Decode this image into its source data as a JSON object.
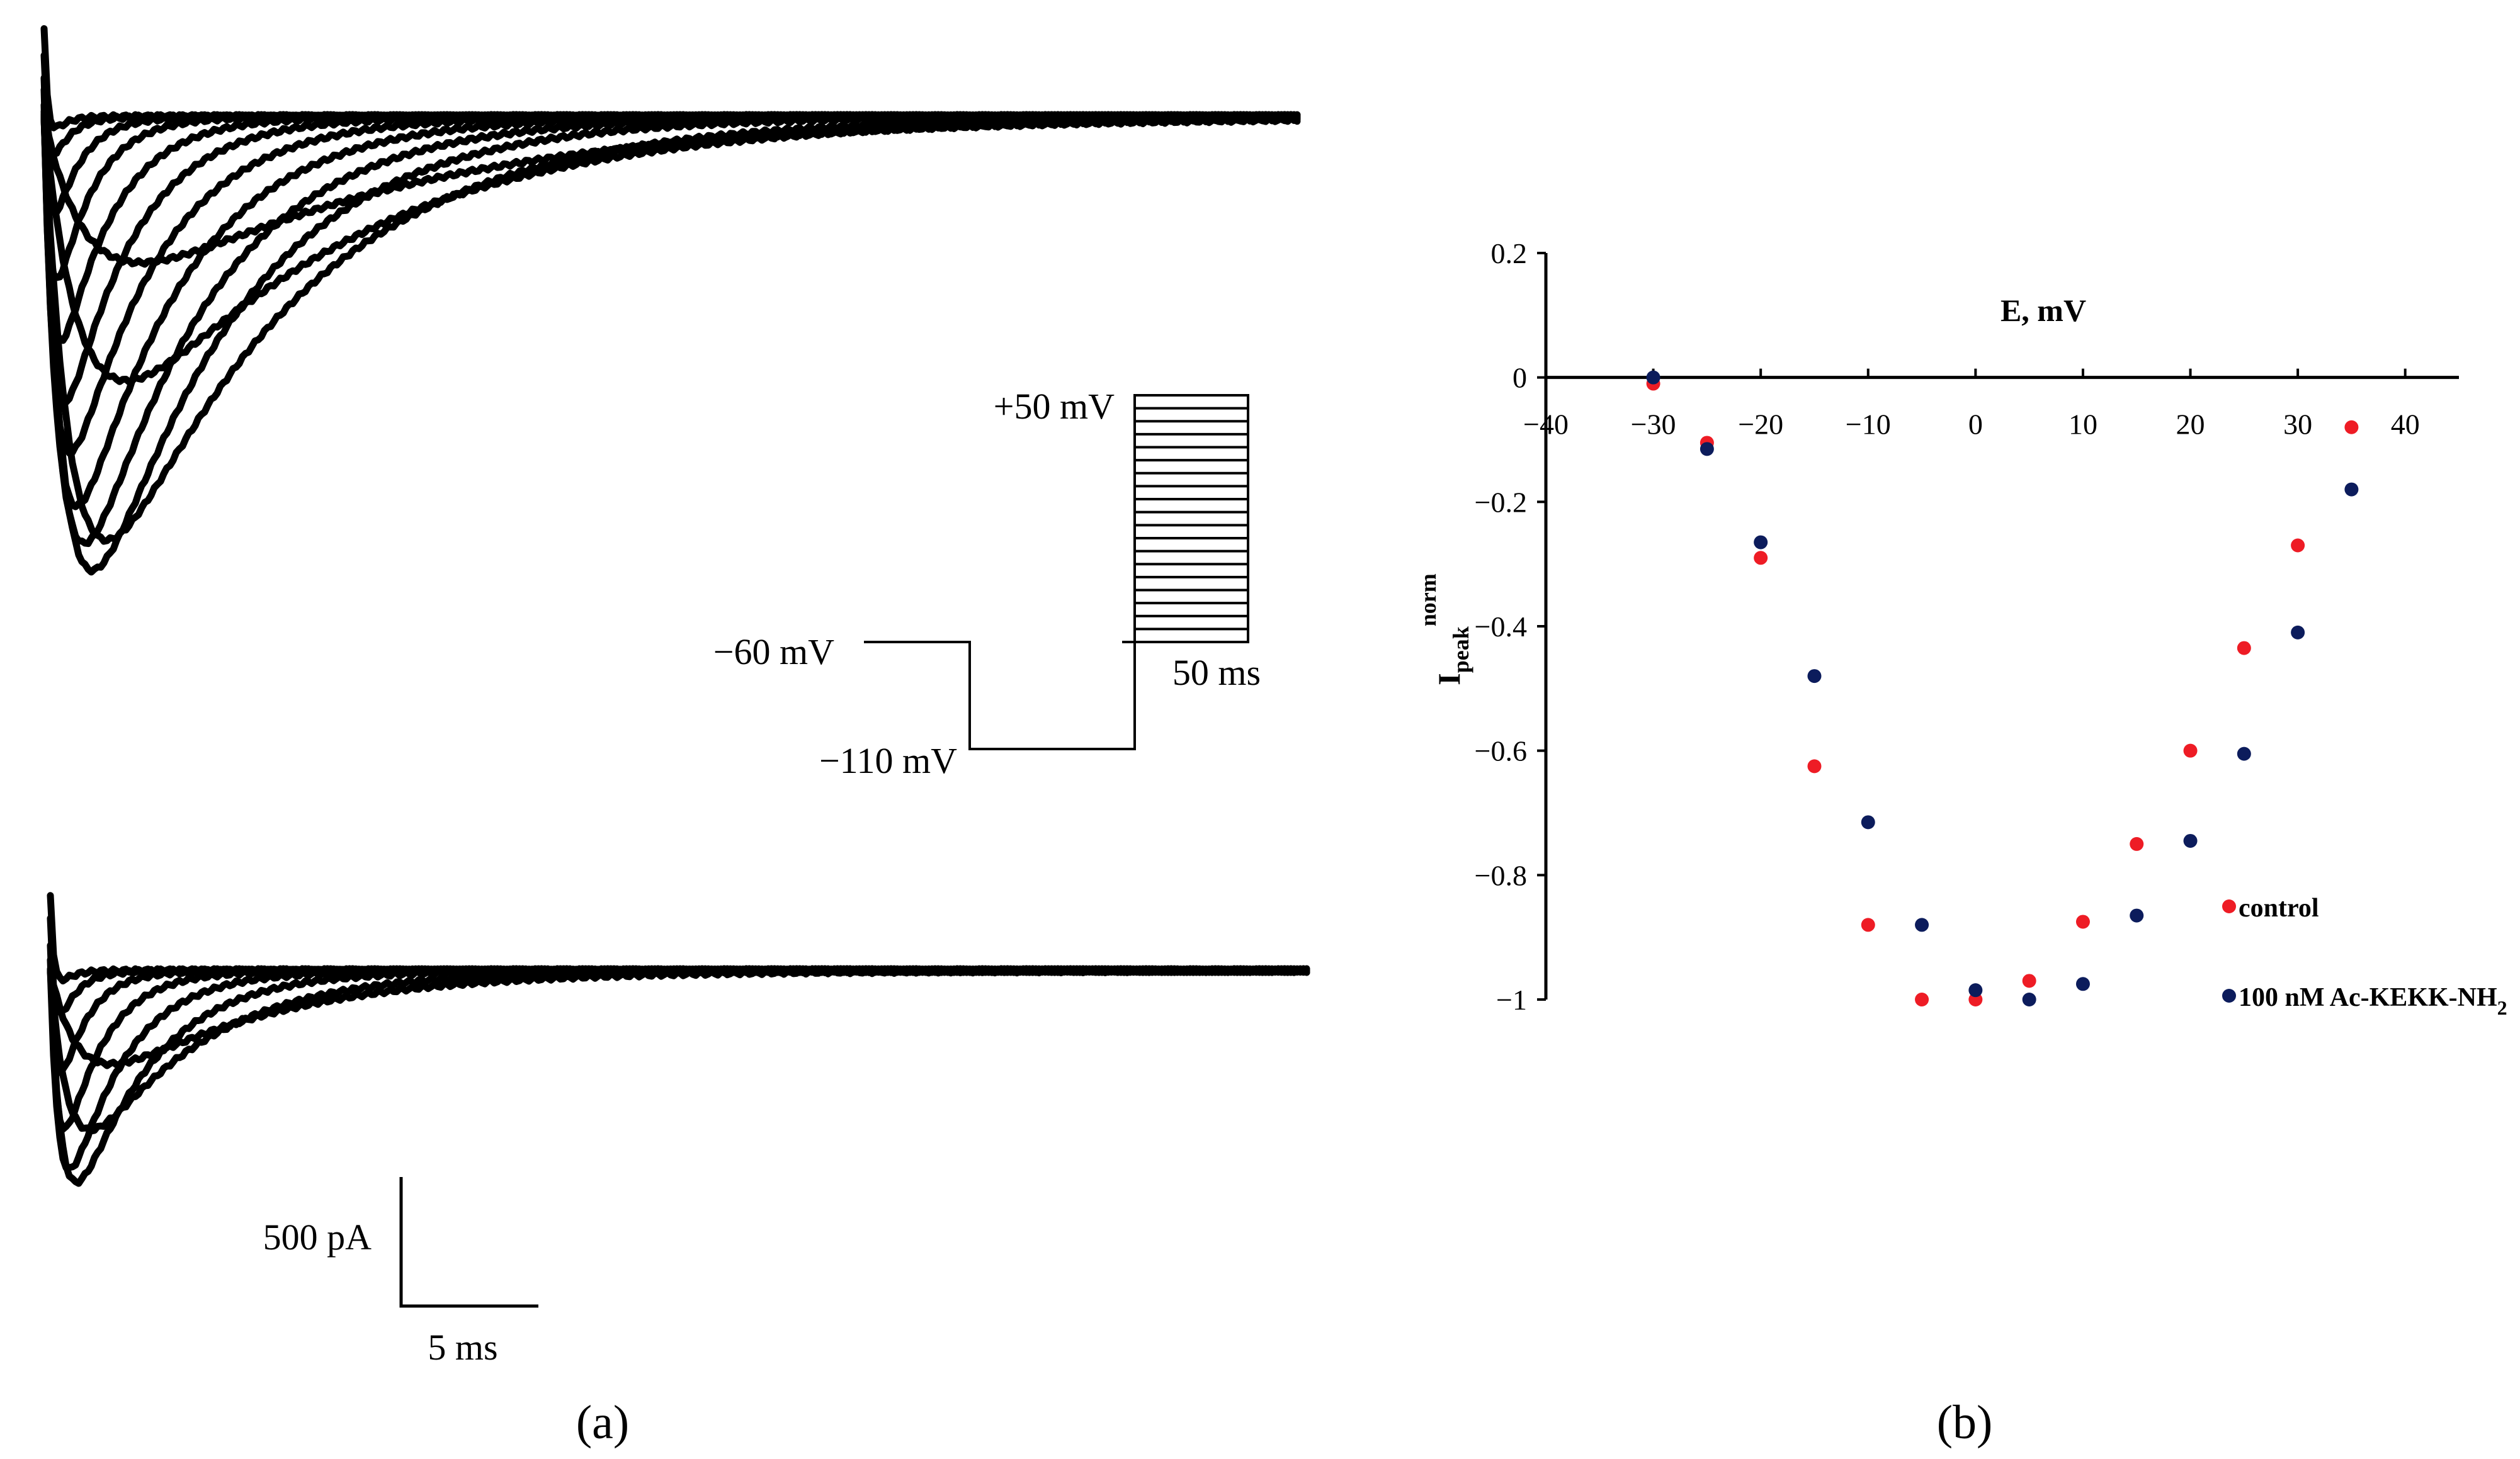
{
  "panel_a": {
    "label": "(a)",
    "protocol": {
      "v_step_max": "+50 mV",
      "v_hold": "−60 mV",
      "v_prepulse": "−110 mV",
      "duration": "50 ms"
    },
    "scale_bar": {
      "current": "500 pA",
      "time": "5 ms"
    }
  },
  "panel_b": {
    "label": "(b)"
  },
  "chart_data": {
    "type": "scatter",
    "xlabel": "E, mV",
    "ylabel_main": "I",
    "ylabel_sub": "peak",
    "ylabel_sup": "norm",
    "xlim": [
      -40,
      45
    ],
    "ylim": [
      -1,
      0.2
    ],
    "xticks": [
      -40,
      -30,
      -20,
      -10,
      0,
      10,
      20,
      30,
      40
    ],
    "xtick_labels": [
      "−40",
      "−30",
      "−20",
      "−10",
      "0",
      "10",
      "20",
      "30",
      "40"
    ],
    "yticks": [
      0.2,
      0,
      -0.2,
      -0.4,
      -0.6,
      -0.8,
      -1
    ],
    "ytick_labels": [
      "0.2",
      "0",
      "−0.2",
      "−0.4",
      "−0.6",
      "−0.8",
      "−1"
    ],
    "grid": false,
    "legend_placement": "bottom-right",
    "series": [
      {
        "name": "control",
        "color": "#ee1c25",
        "x": [
          -30,
          -25,
          -20,
          -15,
          -10,
          -5,
          0,
          5,
          10,
          15,
          20,
          25,
          30,
          35
        ],
        "y": [
          -0.01,
          -0.105,
          -0.29,
          -0.625,
          -0.88,
          -1.0,
          -1.0,
          -0.97,
          -0.875,
          -0.75,
          -0.6,
          -0.435,
          -0.27,
          -0.08
        ]
      },
      {
        "name": "100 nM Ac-KEKK-NH",
        "name_sub": "2",
        "color": "#0c1c5c",
        "x": [
          -30,
          -25,
          -20,
          -15,
          -10,
          -5,
          0,
          5,
          10,
          15,
          20,
          25,
          30,
          35
        ],
        "y": [
          0.0,
          -0.115,
          -0.265,
          -0.48,
          -0.715,
          -0.88,
          -0.985,
          -1.0,
          -0.975,
          -0.865,
          -0.745,
          -0.605,
          -0.41,
          -0.18
        ]
      }
    ]
  }
}
